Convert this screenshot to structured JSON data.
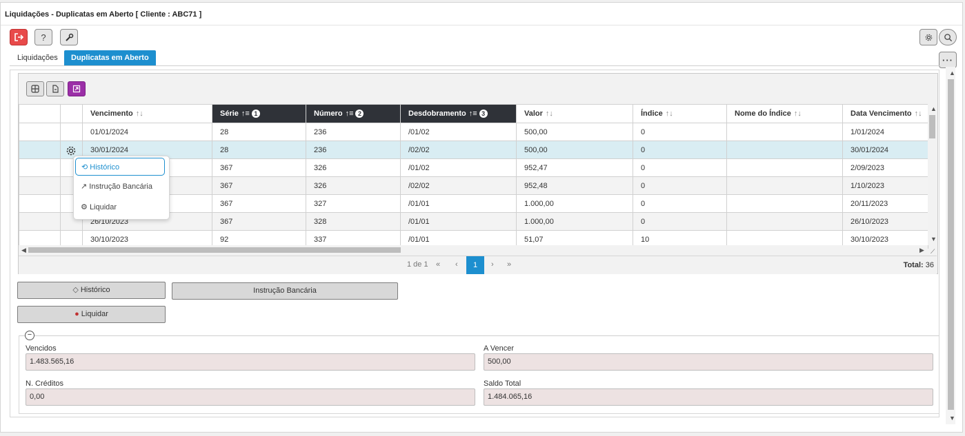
{
  "window": {
    "title": "Liquidações - Duplicatas em Aberto [ Cliente : ABC71 ]"
  },
  "toolbar": {
    "exit": "⎋",
    "help": "?",
    "tools": "🔧"
  },
  "tabs": [
    {
      "label": "Liquidações"
    },
    {
      "label": "Duplicatas em Aberto"
    }
  ],
  "grid": {
    "columns": [
      {
        "label": ""
      },
      {
        "label": ""
      },
      {
        "label": "Vencimento",
        "sort_order": null
      },
      {
        "label": "Série",
        "sort_order": "1"
      },
      {
        "label": "Número",
        "sort_order": "2"
      },
      {
        "label": "Desdobramento",
        "sort_order": "3"
      },
      {
        "label": "Valor",
        "sort_order": null
      },
      {
        "label": "Índice",
        "sort_order": null
      },
      {
        "label": "Nome do Índice",
        "sort_order": null
      },
      {
        "label": "Data Vencimento",
        "sort_order": null
      }
    ],
    "rows": [
      [
        "01/01/2024",
        "28",
        "236",
        "/01/02",
        "500,00",
        "0",
        "",
        "1/01/2024"
      ],
      [
        "30/01/2024",
        "28",
        "236",
        "/02/02",
        "500,00",
        "0",
        "",
        "30/01/2024"
      ],
      [
        "",
        "367",
        "326",
        "/01/02",
        "952,47",
        "0",
        "",
        "2/09/2023"
      ],
      [
        "",
        "367",
        "326",
        "/02/02",
        "952,48",
        "0",
        "",
        "1/10/2023"
      ],
      [
        "",
        "367",
        "327",
        "/01/01",
        "1.000,00",
        "0",
        "",
        "20/11/2023"
      ],
      [
        "26/10/2023",
        "367",
        "328",
        "/01/01",
        "1.000,00",
        "0",
        "",
        "26/10/2023"
      ],
      [
        "30/10/2023",
        "92",
        "337",
        "/01/01",
        "51,07",
        "10",
        "",
        "30/10/2023"
      ]
    ],
    "pager": {
      "page_info": "1 de 1",
      "current_page": "1",
      "total_label": "Total:",
      "total_value": "36"
    }
  },
  "context_menu": {
    "items": [
      {
        "label": "Histórico"
      },
      {
        "label": "Instrução Bancária"
      },
      {
        "label": "Liquidar"
      }
    ]
  },
  "actions": {
    "historico": "Histórico",
    "instrucao": "Instrução Bancária",
    "liquidar": "Liquidar"
  },
  "summary": {
    "vencidos_label": "Vencidos",
    "vencidos_value": "1.483.565,16",
    "a_vencer_label": "A Vencer",
    "a_vencer_value": "500,00",
    "creditos_label": "N. Créditos",
    "creditos_value": "0,00",
    "saldo_label": "Saldo Total",
    "saldo_value": "1.484.065,16"
  },
  "colors": {
    "accent": "#1d8fcf",
    "exit_button": "#e84a4a",
    "selected_row": "#d9edf3",
    "readonly_field": "#ede2e2",
    "sorted_header": "#2f3238"
  }
}
